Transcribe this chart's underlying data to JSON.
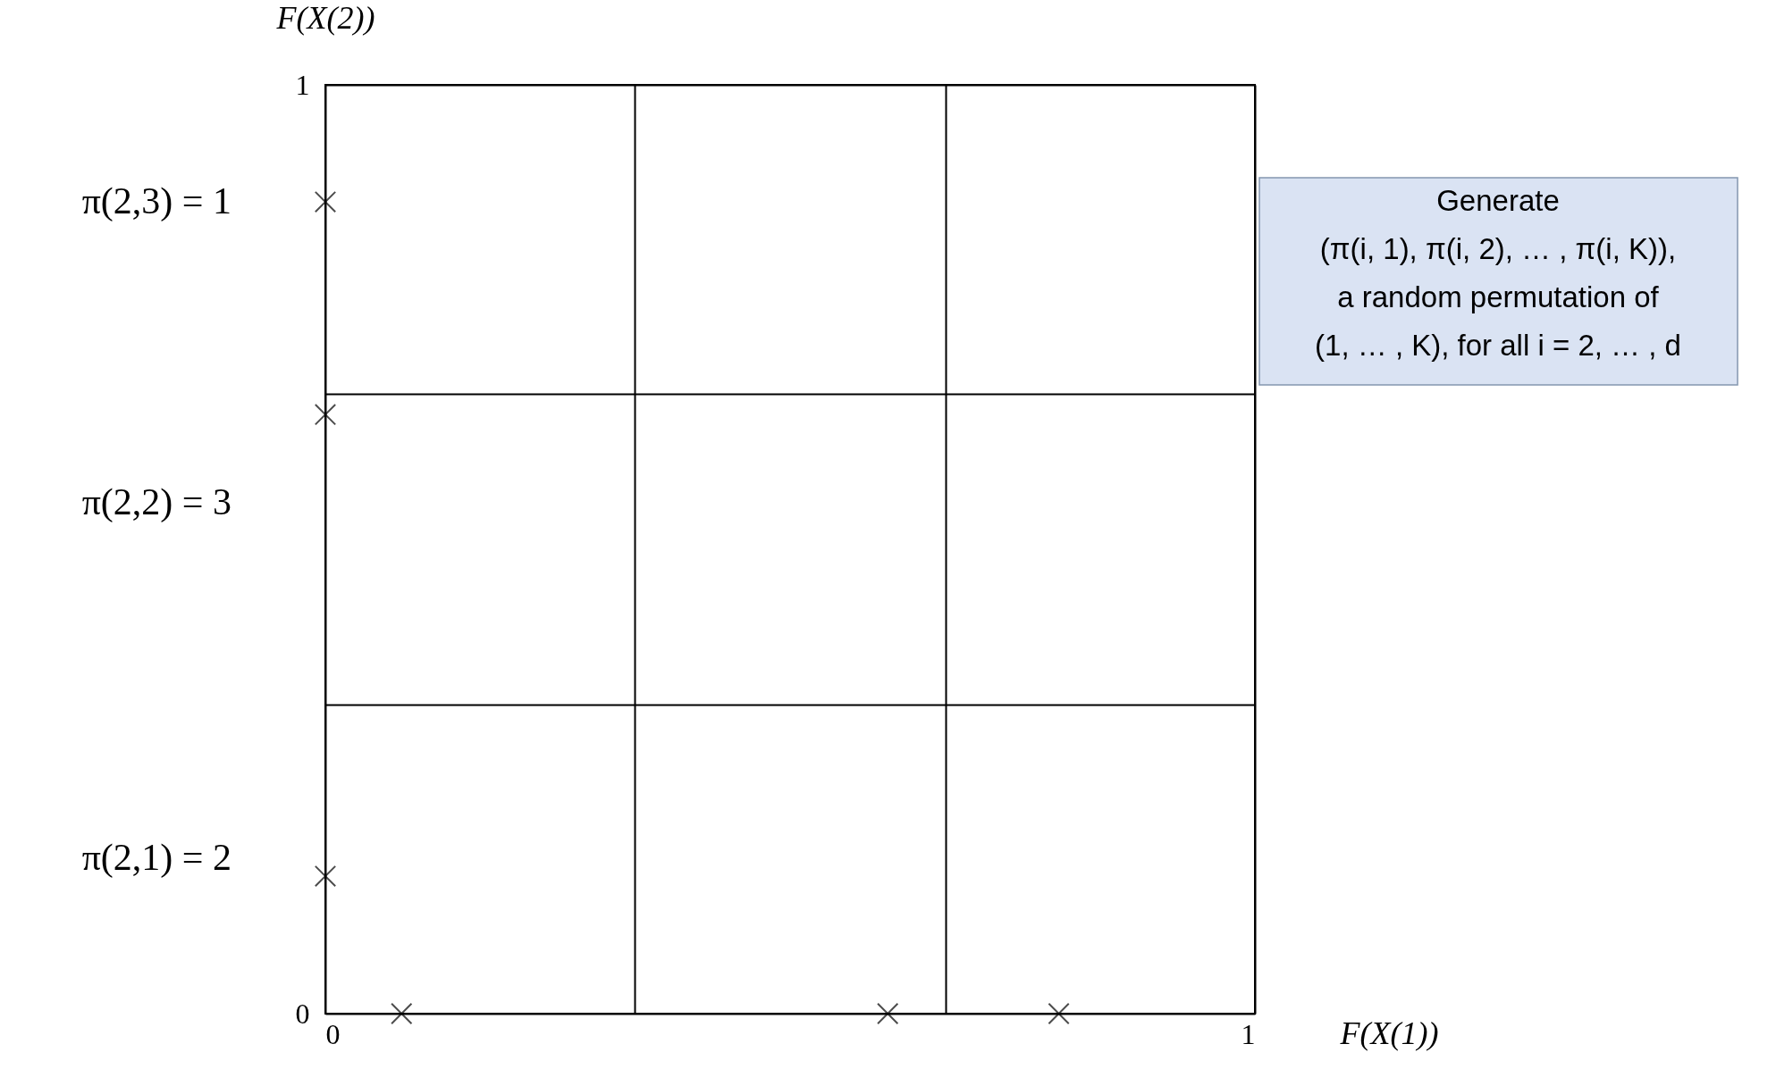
{
  "chart_data": {
    "type": "scatter",
    "xlabel": "F(X(1))",
    "ylabel": "F(X(2))",
    "series": [
      {
        "color": "#000000",
        "x": [
          0.082,
          0.605,
          0.789,
          0,
          0,
          0
        ],
        "values": [
          0,
          0,
          0,
          0.874,
          0.645,
          0.148
        ]
      }
    ],
    "xlim": [
      0,
      1
    ],
    "ylim": [
      0,
      1
    ],
    "xticks": [
      0,
      {
        "value": 0.333,
        "label": null
      },
      {
        "value": 0.667,
        "label": null
      },
      1
    ],
    "yticks": [
      0,
      {
        "value": 0.333,
        "label": null
      },
      {
        "value": 0.667,
        "label": null
      },
      1
    ],
    "grid": true,
    "marker": "cross",
    "legend": false,
    "annotations": [
      "π(2,3) = 1",
      "π(2,2) = 3",
      "π(2,1) = 2",
      "Generate\n(π(i, 1), π(i, 2), … , π(i, K)),\na random permutation of\n(1, … , K), for all i = 2, … , d"
    ]
  }
}
